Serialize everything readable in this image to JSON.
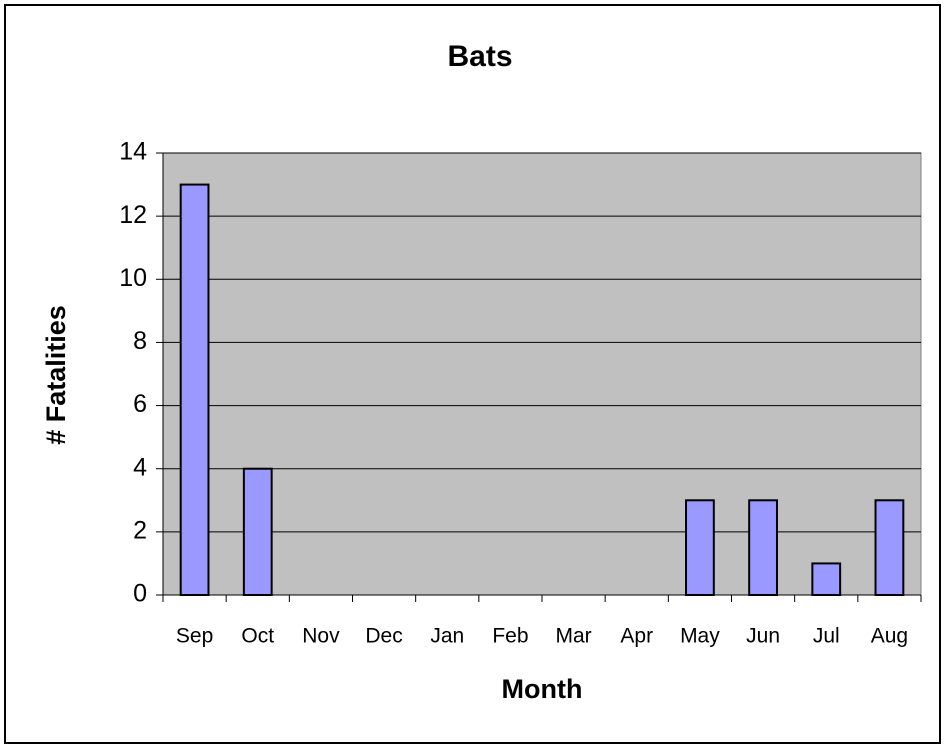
{
  "chart_data": {
    "type": "bar",
    "title": "Bats",
    "x_label": "Month",
    "y_label": "# Fatalities",
    "categories": [
      "Sep",
      "Oct",
      "Nov",
      "Dec",
      "Jan",
      "Feb",
      "Mar",
      "Apr",
      "May",
      "Jun",
      "Jul",
      "Aug"
    ],
    "values": [
      13,
      4,
      0,
      0,
      0,
      0,
      0,
      0,
      3,
      3,
      1,
      3
    ],
    "color": "#9999ff",
    "ylim": [
      0,
      14
    ],
    "yticks": [
      0,
      2,
      4,
      6,
      8,
      10,
      12,
      14
    ],
    "grid": true
  }
}
